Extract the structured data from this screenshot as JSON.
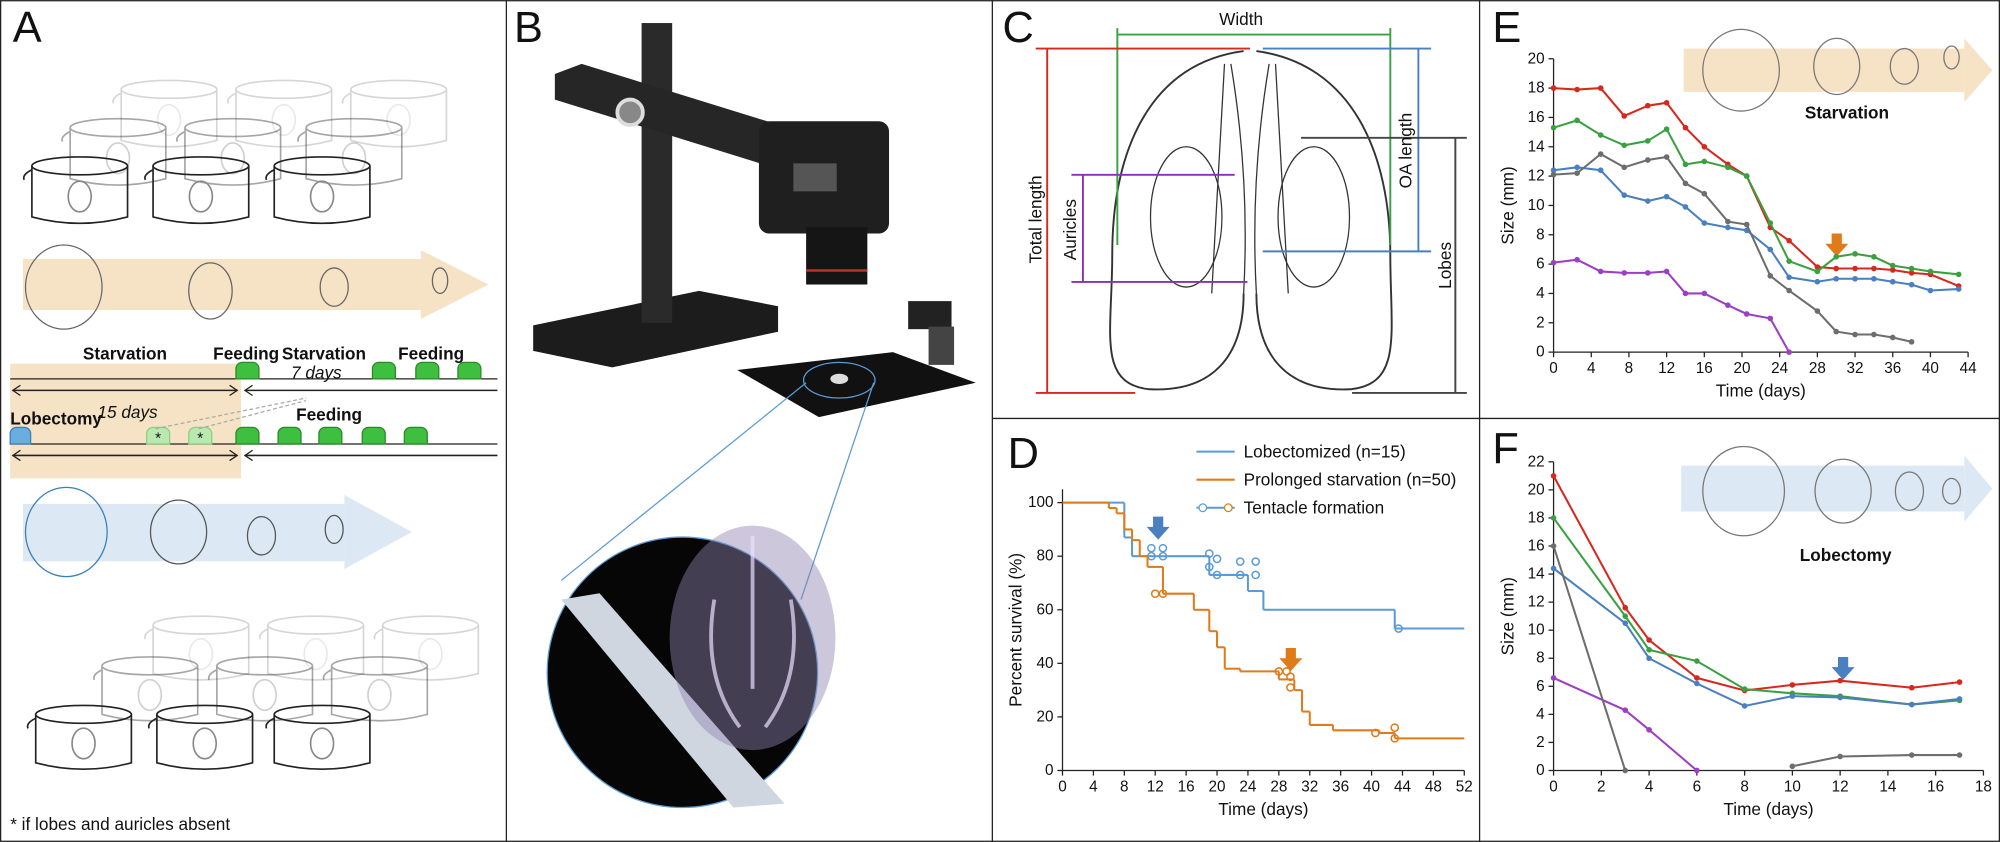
{
  "figure": {
    "panel_a": {
      "label": "A",
      "starvation_1": "Starvation",
      "feeding_1": "Feeding",
      "starvation_2": "Starvation",
      "feeding_2": "Feeding",
      "days_7": "7 days",
      "days_15": "15 days",
      "lobectomy": "Lobectomy",
      "feeding_3": "Feeding",
      "asterisk_1": "*",
      "asterisk_2": "*",
      "footnote": "* if lobes and auricles absent"
    },
    "panel_b": {
      "label": "B"
    },
    "panel_c": {
      "label": "C",
      "width": "Width",
      "total_length": "Total length",
      "auricles": "Auricles",
      "oa_length": "OA length",
      "lobes": "Lobes"
    }
  },
  "chart_data": [
    {
      "type": "step",
      "label": "D",
      "xlabel": "Time (days)",
      "ylabel": "Percent survival (%)",
      "xlim": [
        0,
        52
      ],
      "xticks": [
        0,
        4,
        8,
        12,
        16,
        20,
        24,
        28,
        32,
        36,
        40,
        44,
        48,
        52
      ],
      "ylim": [
        0,
        105
      ],
      "yticks": [
        0,
        20,
        40,
        60,
        80,
        100
      ],
      "tentacle_legend": "Tentacle formation",
      "series": [
        {
          "name": "Lobectomized (n=15)",
          "color": "#5b9bd5",
          "x": [
            0,
            8,
            9,
            19,
            24,
            26,
            43,
            52
          ],
          "values": [
            100,
            87,
            80,
            73,
            67,
            60,
            53,
            53
          ],
          "tentacle_x": [
            11.5,
            13,
            11.5,
            13,
            19,
            19,
            20,
            20,
            23,
            23,
            25,
            25,
            43.5
          ],
          "tentacle_values": [
            80,
            80,
            83,
            83,
            81,
            76,
            79,
            73,
            78,
            73,
            78,
            73,
            53
          ]
        },
        {
          "name": "Prolonged starvation (n=50)",
          "color": "#e07b1a",
          "x": [
            0,
            6,
            7,
            8,
            9,
            10,
            11,
            13,
            17,
            19,
            20,
            21,
            23,
            28,
            30,
            31,
            32,
            35,
            41,
            43,
            52
          ],
          "values": [
            100,
            98,
            96,
            90,
            86,
            80,
            76,
            66,
            60,
            52,
            46,
            38,
            37,
            34,
            30,
            22,
            17,
            15,
            14,
            12,
            12
          ],
          "tentacle_x": [
            12,
            13,
            28,
            29,
            29.5,
            29.5,
            40.5,
            43,
            43
          ],
          "tentacle_values": [
            66,
            66,
            37,
            37,
            35,
            31,
            14,
            16,
            12
          ]
        }
      ]
    },
    {
      "type": "line",
      "label": "E",
      "annotation": "Starvation",
      "xlabel": "Time (days)",
      "ylabel": "Size (mm)",
      "xlim": [
        0,
        44
      ],
      "xticks": [
        0,
        4,
        8,
        12,
        16,
        20,
        24,
        28,
        32,
        36,
        40,
        44
      ],
      "ylim": [
        0,
        20
      ],
      "yticks": [
        0,
        2,
        4,
        6,
        8,
        10,
        12,
        14,
        16,
        18,
        20
      ],
      "x": [
        0,
        2.5,
        5,
        7.5,
        10,
        12,
        14,
        16,
        18.5,
        20.5,
        23,
        25,
        28,
        30,
        32,
        34,
        36,
        38,
        40,
        43
      ],
      "series": [
        {
          "color": "#d7281e",
          "values": [
            18,
            17.9,
            18,
            16.1,
            16.8,
            17,
            15.3,
            14,
            12.8,
            12,
            8.5,
            7.6,
            5.8,
            5.7,
            5.7,
            5.7,
            5.6,
            5.4,
            5.3,
            4.5
          ]
        },
        {
          "color": "#3aa040",
          "values": [
            15.3,
            15.8,
            14.8,
            14.1,
            14.4,
            15.2,
            12.8,
            13,
            12.6,
            12,
            8.8,
            6.2,
            5.5,
            6.5,
            6.7,
            6.5,
            5.9,
            5.7,
            5.5,
            5.3
          ]
        },
        {
          "color": "#4a7fc0",
          "values": [
            12.4,
            12.6,
            12.4,
            10.7,
            10.3,
            10.6,
            9.9,
            8.8,
            8.5,
            8.3,
            7,
            5.1,
            4.8,
            5,
            5,
            5,
            4.8,
            4.6,
            4.2,
            4.3
          ]
        },
        {
          "color": "#6d6d6d",
          "values": [
            12.1,
            12.2,
            13.5,
            12.6,
            13.1,
            13.3,
            11.5,
            10.8,
            8.9,
            8.7,
            5.2,
            4.2,
            2.8,
            1.4,
            1.2,
            1.2,
            1,
            0.7,
            null,
            null
          ]
        },
        {
          "color": "#9b3fc4",
          "values": [
            6.1,
            6.3,
            5.5,
            5.4,
            5.4,
            5.5,
            4,
            4,
            3.2,
            2.6,
            2.3,
            0,
            null,
            null,
            null,
            null,
            null,
            null,
            null,
            null
          ]
        }
      ]
    },
    {
      "type": "line",
      "label": "F",
      "annotation": "Lobectomy",
      "xlabel": "Time (days)",
      "ylabel": "Size (mm)",
      "xlim": [
        0,
        18
      ],
      "xticks": [
        0,
        2,
        4,
        6,
        8,
        10,
        12,
        14,
        16,
        18
      ],
      "ylim": [
        0,
        22
      ],
      "yticks": [
        0,
        2,
        4,
        6,
        8,
        10,
        12,
        14,
        16,
        18,
        20,
        22
      ],
      "x": [
        0,
        3,
        4,
        6,
        8,
        10,
        12,
        15,
        17
      ],
      "series": [
        {
          "color": "#d7281e",
          "values": [
            21,
            11.6,
            9.3,
            6.6,
            5.7,
            6.1,
            6.4,
            5.9,
            6.3
          ]
        },
        {
          "color": "#3aa040",
          "values": [
            18,
            11,
            8.6,
            7.8,
            5.8,
            5.5,
            5.3,
            4.7,
            5
          ]
        },
        {
          "color": "#4a7fc0",
          "values": [
            14.4,
            10.5,
            8,
            6.2,
            4.6,
            5.3,
            5.2,
            4.7,
            5.1
          ]
        },
        {
          "color": "#9b3fc4",
          "values": [
            6.6,
            4.3,
            2.9,
            0,
            null,
            null,
            null,
            null,
            null
          ]
        },
        {
          "color": "#6d6d6d",
          "values": [
            16,
            0,
            null,
            null,
            null,
            0.3,
            1,
            1.1,
            1.1
          ]
        }
      ]
    }
  ]
}
